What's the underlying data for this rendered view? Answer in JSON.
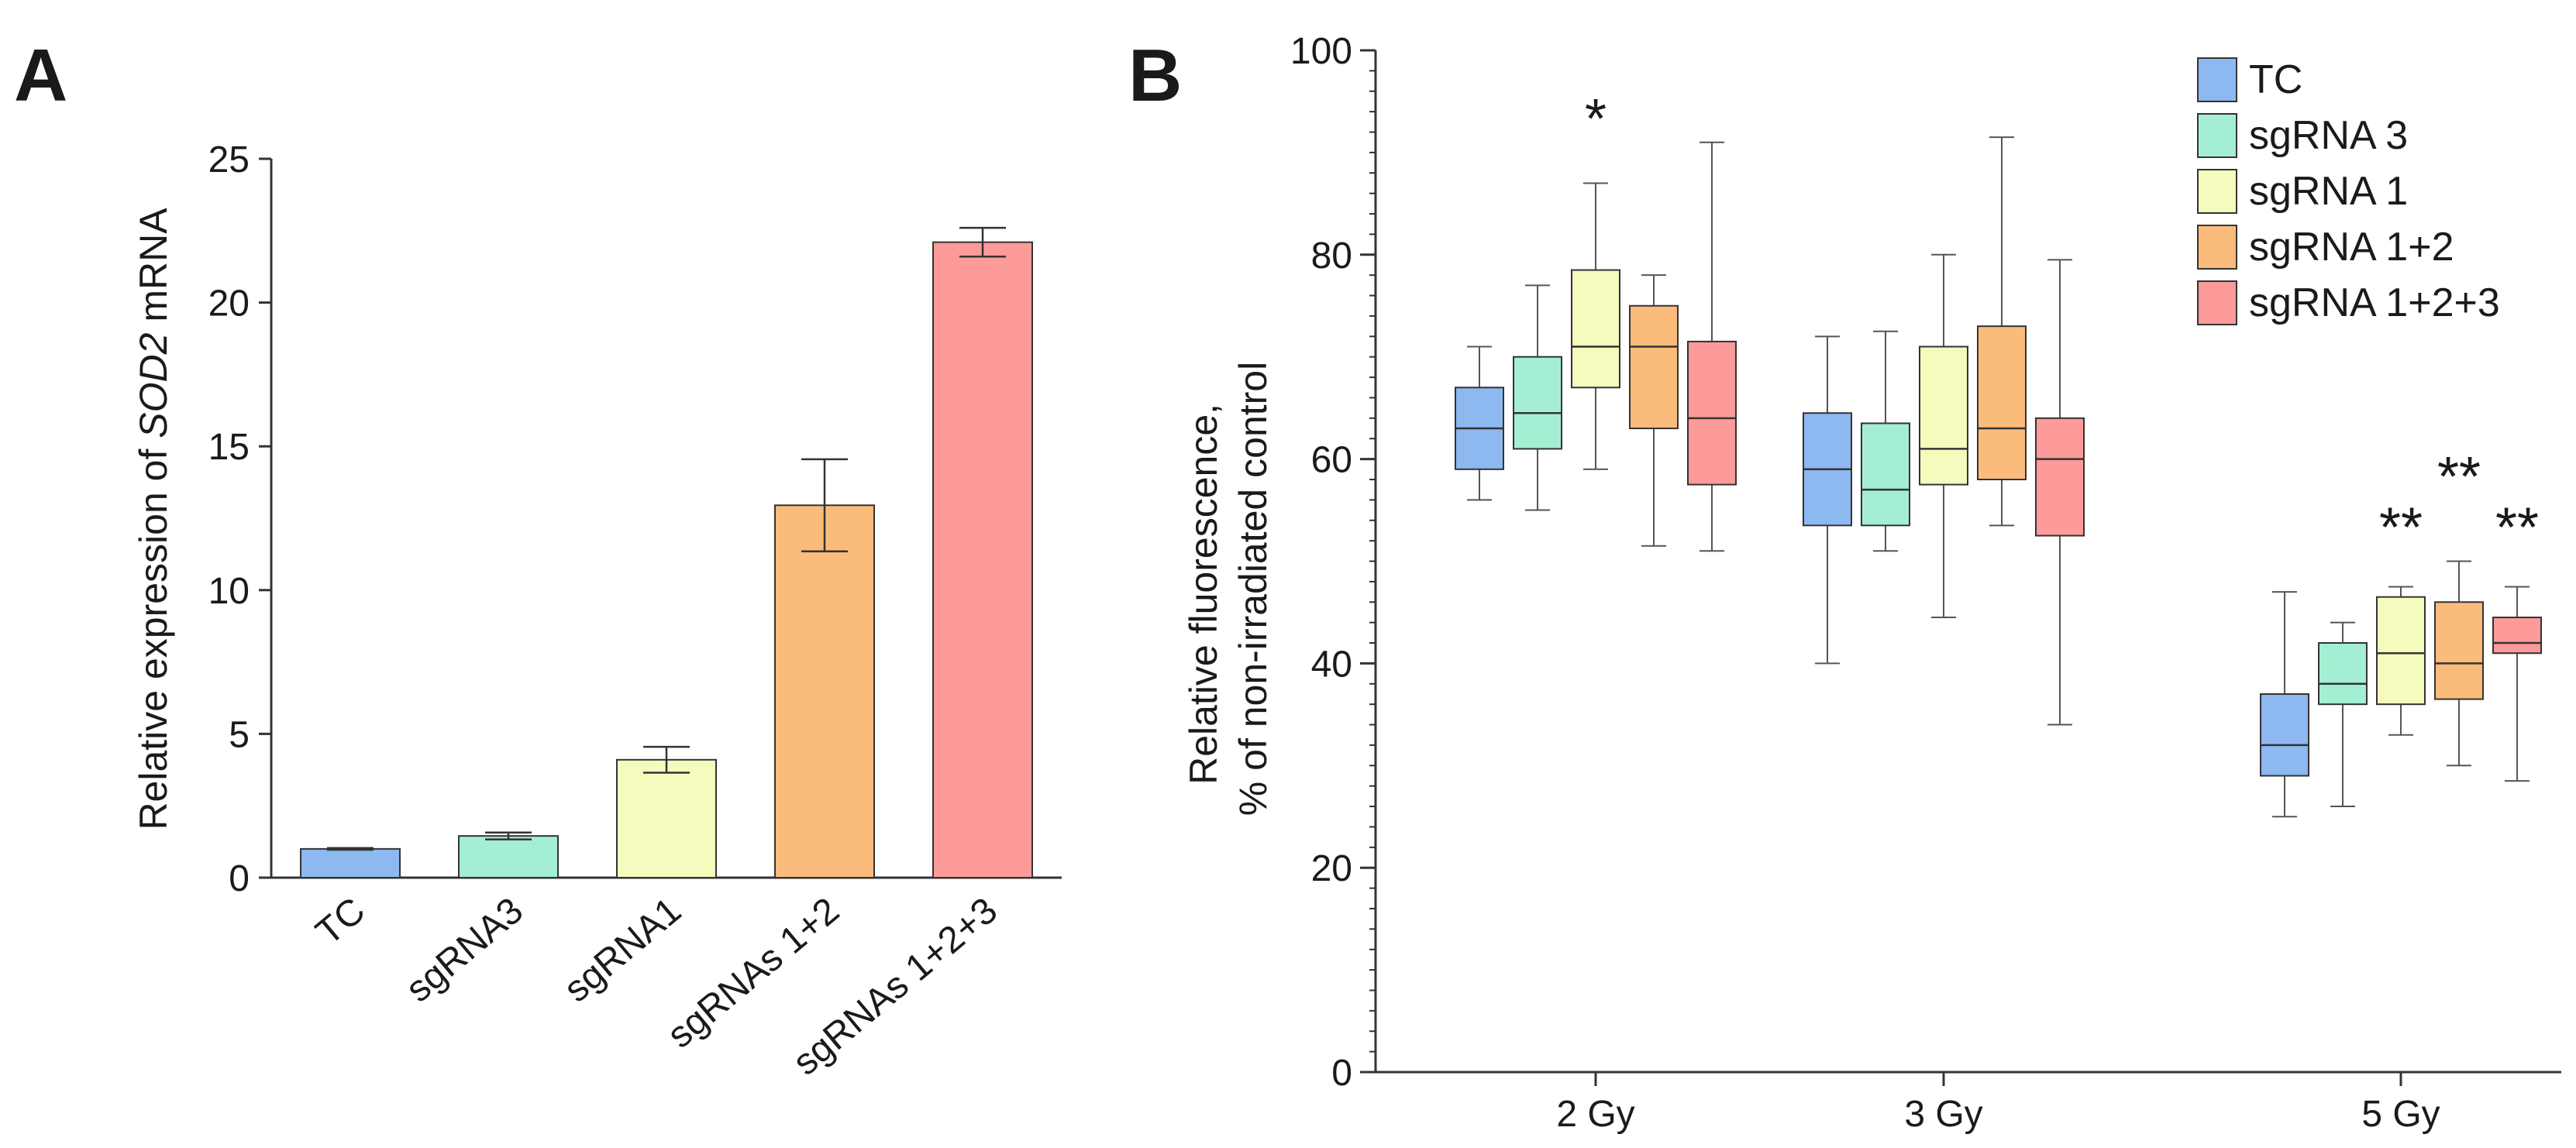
{
  "panels": {
    "a_label": "A",
    "b_label": "B"
  },
  "chart_data": [
    {
      "type": "bar",
      "panel": "A",
      "title": "",
      "ylabel_prefix": "Relative expression of ",
      "ylabel_gene": "SOD2",
      "ylabel_suffix": " mRNA",
      "xlabel": "",
      "ylim": [
        0,
        25
      ],
      "yticks": [
        0,
        5,
        10,
        15,
        20,
        25
      ],
      "categories": [
        "TC",
        "sgRNA3",
        "sgRNA1",
        "sgRNAs 1+2",
        "sgRNAs 1+2+3"
      ],
      "values": [
        1.0,
        1.45,
        4.1,
        12.95,
        22.1
      ],
      "errors": [
        0.03,
        0.12,
        0.45,
        1.6,
        0.5
      ],
      "colors": [
        "#8db8f0",
        "#a4efd3",
        "#f4fbbd",
        "#fbbc7b",
        "#fd9a9a"
      ]
    },
    {
      "type": "box",
      "panel": "B",
      "ylabel_line1": "Relative fluorescence,",
      "ylabel_line2": "% of non-irradiated control",
      "ylim": [
        0,
        100
      ],
      "yticks": [
        0,
        20,
        40,
        60,
        80,
        100
      ],
      "groups": [
        "2 Gy",
        "3 Gy",
        "5 Gy"
      ],
      "series": [
        {
          "name": "TC",
          "color": "#8db8f0",
          "boxes": [
            {
              "min": 56,
              "q1": 59,
              "median": 63,
              "q3": 67,
              "max": 71
            },
            {
              "min": 40,
              "q1": 53.5,
              "median": 59,
              "q3": 64.5,
              "max": 72
            },
            {
              "min": 25,
              "q1": 29,
              "median": 32,
              "q3": 37,
              "max": 47
            }
          ]
        },
        {
          "name": "sgRNA 3",
          "color": "#a4efd3",
          "boxes": [
            {
              "min": 55,
              "q1": 61,
              "median": 64.5,
              "q3": 70,
              "max": 77
            },
            {
              "min": 51,
              "q1": 53.5,
              "median": 57,
              "q3": 63.5,
              "max": 72.5
            },
            {
              "min": 26,
              "q1": 36,
              "median": 38,
              "q3": 42,
              "max": 44
            }
          ]
        },
        {
          "name": "sgRNA 1",
          "color": "#f4fbbd",
          "boxes": [
            {
              "min": 59,
              "q1": 67,
              "median": 71,
              "q3": 78.5,
              "max": 87
            },
            {
              "min": 44.5,
              "q1": 57.5,
              "median": 61,
              "q3": 71,
              "max": 80
            },
            {
              "min": 33,
              "q1": 36,
              "median": 41,
              "q3": 46.5,
              "max": 47.5
            }
          ]
        },
        {
          "name": "sgRNA 1+2",
          "color": "#fbbc7b",
          "boxes": [
            {
              "min": 51.5,
              "q1": 63,
              "median": 71,
              "q3": 75,
              "max": 78
            },
            {
              "min": 53.5,
              "q1": 58,
              "median": 63,
              "q3": 73,
              "max": 91.5
            },
            {
              "min": 30,
              "q1": 36.5,
              "median": 40,
              "q3": 46,
              "max": 50
            }
          ]
        },
        {
          "name": "sgRNA 1+2+3",
          "color": "#fd9a9a",
          "boxes": [
            {
              "min": 51,
              "q1": 57.5,
              "median": 64,
              "q3": 71.5,
              "max": 91
            },
            {
              "min": 34,
              "q1": 52.5,
              "median": 60,
              "q3": 64,
              "max": 79.5
            },
            {
              "min": 28.5,
              "q1": 41,
              "median": 42,
              "q3": 44.5,
              "max": 47.5
            }
          ]
        }
      ],
      "annotations": [
        {
          "text": "*",
          "group": 0,
          "series": 2,
          "y": 94
        },
        {
          "text": "**",
          "group": 2,
          "series": 2,
          "y": 54
        },
        {
          "text": "**",
          "group": 2,
          "series": 3,
          "y": 59
        },
        {
          "text": "**",
          "group": 2,
          "series": 4,
          "y": 54
        }
      ],
      "legend_position": "top-right"
    }
  ]
}
